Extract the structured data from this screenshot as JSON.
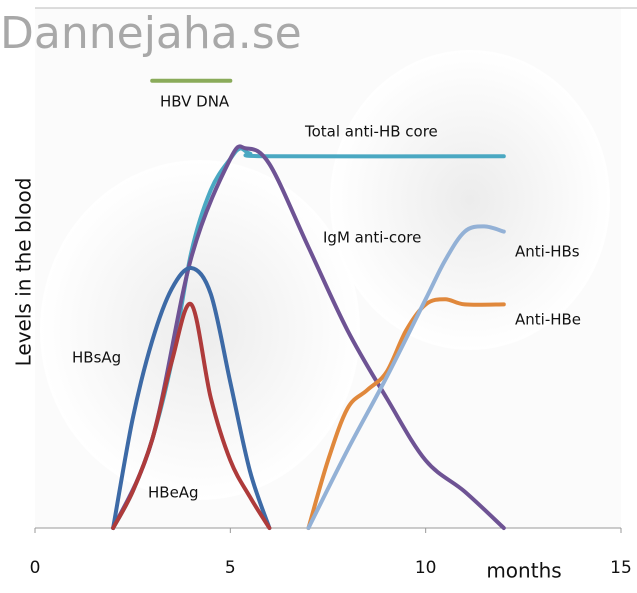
{
  "chart_data": {
    "type": "line",
    "title": "Dannejaha.se",
    "y_label": "Levels in the blood",
    "x_label": "months",
    "xlim": [
      0,
      15
    ],
    "xticks": [
      0,
      5,
      10,
      15
    ],
    "ylim": [
      0,
      100
    ],
    "series": [
      {
        "name": "HBV DNA",
        "color": "#8aab5a",
        "x": [
          3,
          5
        ],
        "values": [
          86,
          86
        ]
      },
      {
        "name": "Total anti-HB core",
        "color": "#4aa8c2",
        "x": [
          2,
          2.5,
          3,
          3.5,
          4,
          4.5,
          5,
          5.25,
          5.5,
          6,
          12
        ],
        "values": [
          0,
          7,
          17,
          32,
          53,
          65,
          71,
          73,
          72,
          71.5,
          71.5
        ]
      },
      {
        "name": "IgM anti-core",
        "color": "#6e5394",
        "x": [
          2,
          3,
          4,
          5,
          5.4,
          6,
          7,
          8,
          9,
          10,
          11,
          12
        ],
        "values": [
          0,
          17,
          52,
          71,
          73,
          70,
          54,
          38,
          25,
          13,
          7,
          0
        ]
      },
      {
        "name": "HBsAg",
        "color": "#3d6aa6",
        "x": [
          2,
          2.5,
          3,
          3.5,
          4,
          4.5,
          5,
          5.5,
          6
        ],
        "values": [
          0,
          21,
          36,
          46,
          50,
          45,
          28,
          11,
          0
        ]
      },
      {
        "name": "HBeAg",
        "color": "#ae3b3b",
        "x": [
          2,
          2.5,
          3,
          3.5,
          4,
          4.5,
          5,
          5.5,
          6
        ],
        "values": [
          0,
          7,
          17,
          32,
          43,
          25,
          13,
          6,
          0
        ]
      },
      {
        "name": "Anti-HBe",
        "color": "#e0883c",
        "x": [
          7,
          7.5,
          8,
          8.5,
          9,
          9.5,
          10,
          10.5,
          11,
          12
        ],
        "values": [
          0,
          13,
          23,
          26.5,
          30,
          38,
          43,
          44,
          43,
          43
        ]
      },
      {
        "name": "Anti-HBs",
        "color": "#93b1d6",
        "x": [
          7,
          8,
          9,
          10,
          10.5,
          11,
          11.5,
          12
        ],
        "values": [
          0,
          15,
          29,
          44,
          51.5,
          57,
          58,
          57
        ]
      }
    ]
  }
}
